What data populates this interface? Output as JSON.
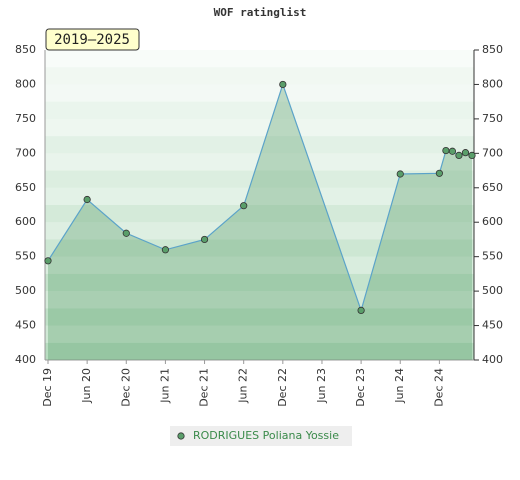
{
  "chart_data": {
    "type": "area",
    "title": "WOF ratinglist",
    "annotation": "2019–2025",
    "x": [
      "2019-12",
      "2020-06",
      "2020-12",
      "2021-06",
      "2021-12",
      "2022-06",
      "2022-12",
      "2023-12",
      "2024-06",
      "2024-12",
      "2025-01",
      "2025-02",
      "2025-03",
      "2025-04",
      "2025-05"
    ],
    "series": [
      {
        "name": "RODRIGUES Poliana Yossie",
        "color": "#5a9e6a",
        "line_color": "#5ba3c9",
        "values": [
          544,
          633,
          584,
          560,
          575,
          624,
          800,
          472,
          670,
          671,
          704,
          703,
          697,
          701,
          697
        ]
      }
    ],
    "xlim": [
      "2019-12",
      "2025-05"
    ],
    "xticks": [
      {
        "value": "2019-12",
        "label": "Dec 19"
      },
      {
        "value": "2020-06",
        "label": "Jun 20"
      },
      {
        "value": "2020-12",
        "label": "Dec 20"
      },
      {
        "value": "2021-06",
        "label": "Jun 21"
      },
      {
        "value": "2021-12",
        "label": "Dec 21"
      },
      {
        "value": "2022-06",
        "label": "Jun 22"
      },
      {
        "value": "2022-12",
        "label": "Dec 22"
      },
      {
        "value": "2023-06",
        "label": "Jun 23"
      },
      {
        "value": "2023-12",
        "label": "Dec 23"
      },
      {
        "value": "2024-06",
        "label": "Jun 24"
      },
      {
        "value": "2024-12",
        "label": "Dec 24"
      }
    ],
    "ylim": [
      400,
      850
    ],
    "yticks": [
      400,
      450,
      500,
      550,
      600,
      650,
      700,
      750,
      800,
      850
    ]
  }
}
